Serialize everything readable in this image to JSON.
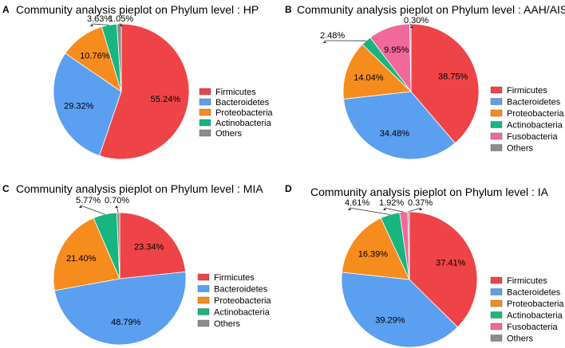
{
  "chart_data": [
    {
      "type": "pie",
      "panel": "A",
      "title": "Community analysis pieplot on Phylum level : HP",
      "series": [
        {
          "name": "Firmicutes",
          "value": 55.24,
          "label": "55.24%",
          "color": "#ee4447"
        },
        {
          "name": "Bacteroidetes",
          "value": 29.32,
          "label": "29.32%",
          "color": "#5b9ff0"
        },
        {
          "name": "Proteobacteria",
          "value": 10.76,
          "label": "10.76%",
          "color": "#f68c1e"
        },
        {
          "name": "Actinobacteria",
          "value": 3.63,
          "label": "3.63%",
          "color": "#19b57e"
        },
        {
          "name": "Others",
          "value": 1.05,
          "label": "1.05%",
          "color": "#8c8c8c"
        }
      ]
    },
    {
      "type": "pie",
      "panel": "B",
      "title": "Community analysis pieplot on Phylum level : AAH/AIS",
      "series": [
        {
          "name": "Firmicutes",
          "value": 38.75,
          "label": "38.75%",
          "color": "#ee4447"
        },
        {
          "name": "Bacteroidetes",
          "value": 34.48,
          "label": "34.48%",
          "color": "#5b9ff0"
        },
        {
          "name": "Proteobacteria",
          "value": 14.04,
          "label": "14.04%",
          "color": "#f68c1e"
        },
        {
          "name": "Actinobacteria",
          "value": 2.48,
          "label": "2.48%",
          "color": "#19b57e"
        },
        {
          "name": "Fusobacteria",
          "value": 9.95,
          "label": "9.95%",
          "color": "#f3689a"
        },
        {
          "name": "Others",
          "value": 0.3,
          "label": "0.30%",
          "color": "#8c8c8c"
        }
      ]
    },
    {
      "type": "pie",
      "panel": "C",
      "title": "Community analysis pieplot on Phylum level : MIA",
      "series": [
        {
          "name": "Firmicutes",
          "value": 23.34,
          "label": "23.34%",
          "color": "#ee4447"
        },
        {
          "name": "Bacteroidetes",
          "value": 48.79,
          "label": "48.79%",
          "color": "#5b9ff0"
        },
        {
          "name": "Proteobacteria",
          "value": 21.4,
          "label": "21.40%",
          "color": "#f68c1e"
        },
        {
          "name": "Actinobacteria",
          "value": 5.77,
          "label": "5.77%",
          "color": "#19b57e"
        },
        {
          "name": "Others",
          "value": 0.7,
          "label": "0.70%",
          "color": "#8c8c8c"
        }
      ]
    },
    {
      "type": "pie",
      "panel": "D",
      "title": "Community analysis pieplot on Phylum level : IA",
      "series": [
        {
          "name": "Firmicutes",
          "value": 37.41,
          "label": "37.41%",
          "color": "#ee4447"
        },
        {
          "name": "Bacteroidetes",
          "value": 39.29,
          "label": "39.29%",
          "color": "#5b9ff0"
        },
        {
          "name": "Proteobacteria",
          "value": 16.39,
          "label": "16.39%",
          "color": "#f68c1e"
        },
        {
          "name": "Actinobacteria",
          "value": 4.61,
          "label": "4.61%",
          "color": "#19b57e"
        },
        {
          "name": "Fusobacteria",
          "value": 1.92,
          "label": "1.92%",
          "color": "#f3689a"
        },
        {
          "name": "Others",
          "value": 0.37,
          "label": "0.37%",
          "color": "#8c8c8c"
        }
      ]
    }
  ]
}
